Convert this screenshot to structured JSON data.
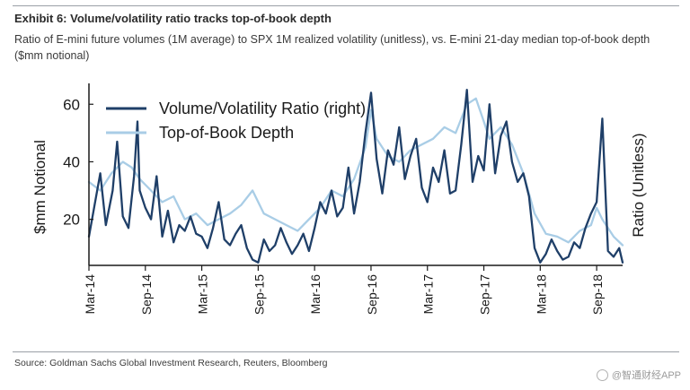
{
  "header": {
    "title": "Exhibit 6: Volume/volatility ratio tracks top-of-book depth",
    "subtitle": "Ratio of E-mini future volumes (1M average) to SPX 1M realized volatility (unitless), vs. E-mini 21-day median top-of-book depth ($mm notional)"
  },
  "footer": {
    "source": "Source: Goldman Sachs Global Investment Research, Reuters, Bloomberg",
    "watermark": "@智通财经APP"
  },
  "colors": {
    "ratio_series": "#1f3f68",
    "depth_series": "#a9cde6",
    "axis": "#1a1a1a"
  },
  "chart_data": {
    "type": "line",
    "title": "",
    "ylabel_left": "$mm Notional",
    "ylabel_right": "Ratio (Unitless)",
    "ylim": [
      4,
      66
    ],
    "yticks": [
      20,
      40,
      60
    ],
    "yticklabels": [
      "20",
      "40",
      "60"
    ],
    "xlim": [
      2014.17,
      2018.9
    ],
    "xticks": [
      2014.17,
      2014.67,
      2015.17,
      2015.67,
      2016.17,
      2016.67,
      2017.17,
      2017.67,
      2018.17,
      2018.67
    ],
    "xticklabels": [
      "Mar-14",
      "Sep-14",
      "Mar-15",
      "Sep-15",
      "Mar-16",
      "Sep-16",
      "Mar-17",
      "Sep-17",
      "Mar-18",
      "Sep-18"
    ],
    "legend": "top-left",
    "series": [
      {
        "name": "Volume/Volatility Ratio (right)",
        "x": [
          2014.17,
          2014.22,
          2014.27,
          2014.32,
          2014.38,
          2014.42,
          2014.47,
          2014.52,
          2014.57,
          2014.6,
          2014.62,
          2014.67,
          2014.72,
          2014.77,
          2014.82,
          2014.87,
          2014.92,
          2014.97,
          2015.02,
          2015.07,
          2015.12,
          2015.17,
          2015.22,
          2015.27,
          2015.32,
          2015.37,
          2015.42,
          2015.47,
          2015.52,
          2015.57,
          2015.62,
          2015.67,
          2015.72,
          2015.77,
          2015.82,
          2015.87,
          2015.92,
          2015.97,
          2016.02,
          2016.07,
          2016.12,
          2016.17,
          2016.22,
          2016.27,
          2016.32,
          2016.37,
          2016.42,
          2016.47,
          2016.52,
          2016.57,
          2016.62,
          2016.67,
          2016.72,
          2016.77,
          2016.82,
          2016.87,
          2016.92,
          2016.97,
          2017.02,
          2017.07,
          2017.12,
          2017.17,
          2017.22,
          2017.27,
          2017.32,
          2017.37,
          2017.42,
          2017.47,
          2017.52,
          2017.57,
          2017.62,
          2017.67,
          2017.72,
          2017.77,
          2017.82,
          2017.87,
          2017.92,
          2017.97,
          2018.02,
          2018.07,
          2018.12,
          2018.17,
          2018.22,
          2018.27,
          2018.32,
          2018.37,
          2018.42,
          2018.47,
          2018.52,
          2018.57,
          2018.62,
          2018.67,
          2018.72,
          2018.77,
          2018.82,
          2018.87,
          2018.9
        ],
        "values": [
          14,
          25,
          36,
          18,
          30,
          47,
          21,
          17,
          35,
          54,
          30,
          24,
          20,
          35,
          14,
          23,
          12,
          18,
          16,
          21,
          15,
          14,
          10,
          17,
          26,
          13,
          11,
          15,
          18,
          10,
          6,
          5,
          13,
          9,
          11,
          17,
          12,
          8,
          11,
          15,
          9,
          17,
          26,
          22,
          30,
          21,
          24,
          38,
          22,
          33,
          50,
          64,
          41,
          29,
          44,
          39,
          52,
          34,
          42,
          48,
          31,
          26,
          38,
          33,
          44,
          29,
          30,
          46,
          65,
          33,
          42,
          37,
          60,
          36,
          49,
          54,
          40,
          33,
          36,
          28,
          10,
          5,
          8,
          13,
          9,
          6,
          7,
          12,
          10,
          17,
          22,
          26,
          55,
          9,
          7,
          10,
          5
        ]
      },
      {
        "name": "Top-of-Book Depth",
        "x": [
          2014.17,
          2014.27,
          2014.37,
          2014.47,
          2014.55,
          2014.62,
          2014.72,
          2014.82,
          2014.92,
          2015.02,
          2015.12,
          2015.22,
          2015.32,
          2015.42,
          2015.52,
          2015.62,
          2015.67,
          2015.72,
          2015.82,
          2015.92,
          2016.02,
          2016.12,
          2016.22,
          2016.32,
          2016.42,
          2016.52,
          2016.62,
          2016.67,
          2016.72,
          2016.82,
          2016.92,
          2017.02,
          2017.12,
          2017.22,
          2017.32,
          2017.42,
          2017.52,
          2017.6,
          2017.67,
          2017.72,
          2017.82,
          2017.92,
          2018.02,
          2018.12,
          2018.22,
          2018.32,
          2018.42,
          2018.52,
          2018.62,
          2018.67,
          2018.72,
          2018.82,
          2018.9
        ],
        "values": [
          33,
          30,
          36,
          40,
          38,
          34,
          30,
          26,
          28,
          20,
          22,
          18,
          20,
          22,
          25,
          30,
          26,
          22,
          20,
          18,
          16,
          20,
          24,
          30,
          28,
          34,
          45,
          58,
          48,
          42,
          40,
          44,
          46,
          48,
          52,
          50,
          60,
          62,
          54,
          48,
          52,
          46,
          36,
          22,
          15,
          14,
          12,
          16,
          18,
          24,
          20,
          14,
          11
        ]
      }
    ]
  }
}
